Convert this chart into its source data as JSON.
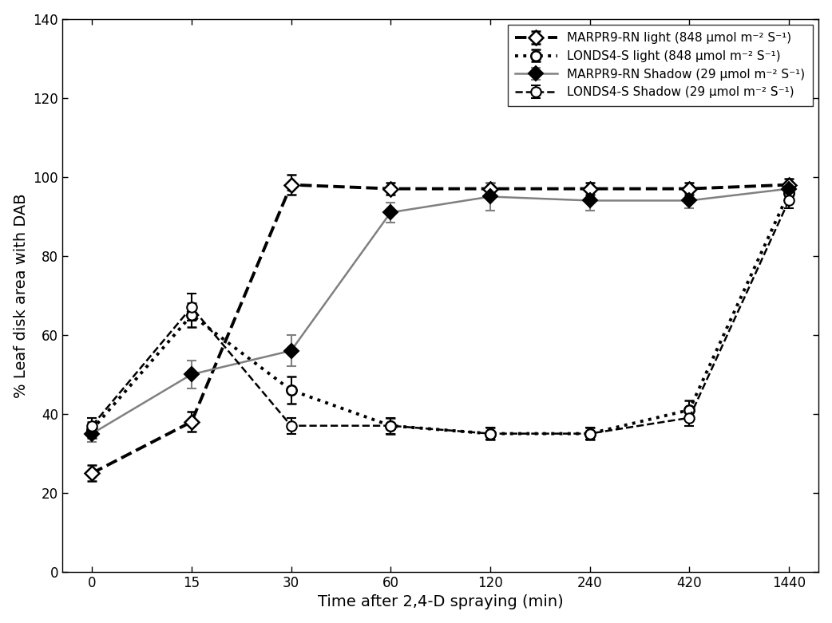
{
  "x_labels": [
    "0",
    "15",
    "30",
    "60",
    "120",
    "240",
    "420",
    "1440"
  ],
  "series": [
    {
      "label": "MARPR9-RN light (848 μmol m⁻² S⁻¹)",
      "y": [
        25,
        38,
        98,
        97,
        97,
        97,
        97,
        98
      ],
      "yerr": [
        2.0,
        2.5,
        2.5,
        1.5,
        1.5,
        1.5,
        1.5,
        1.5
      ],
      "color": "black",
      "linestyle": "--",
      "linewidth": 2.8,
      "marker": "D",
      "markersize": 9,
      "markerfacecolor": "white",
      "markeredgecolor": "black",
      "markeredgewidth": 1.8
    },
    {
      "label": "LONDS4-S light (848 μmol m⁻² S⁻¹)",
      "y": [
        36,
        65,
        46,
        37,
        35,
        35,
        41,
        96
      ],
      "yerr": [
        2.0,
        3.0,
        3.5,
        2.0,
        1.5,
        1.5,
        2.5,
        2.0
      ],
      "color": "black",
      "linestyle": ":",
      "linewidth": 2.8,
      "marker": "o",
      "markersize": 9,
      "markerfacecolor": "white",
      "markeredgecolor": "black",
      "markeredgewidth": 1.8
    },
    {
      "label": "MARPR9-RN Shadow (29 μmol m⁻² S⁻¹)",
      "y": [
        35,
        50,
        56,
        91,
        95,
        94,
        94,
        97
      ],
      "yerr": [
        2.0,
        3.5,
        4.0,
        2.5,
        3.5,
        2.5,
        2.0,
        1.5
      ],
      "color": "gray",
      "linestyle": "-",
      "linewidth": 1.8,
      "marker": "D",
      "markersize": 9,
      "markerfacecolor": "black",
      "markeredgecolor": "black",
      "markeredgewidth": 1.5
    },
    {
      "label": "LONDS4-S Shadow (29 μmol m⁻² S⁻¹)",
      "y": [
        37,
        67,
        37,
        37,
        35,
        35,
        39,
        94
      ],
      "yerr": [
        2.0,
        3.5,
        2.0,
        2.0,
        1.5,
        1.5,
        2.0,
        2.0
      ],
      "color": "black",
      "linestyle": "--",
      "linewidth": 1.8,
      "marker": "o",
      "markersize": 9,
      "markerfacecolor": "white",
      "markeredgecolor": "black",
      "markeredgewidth": 1.5
    }
  ],
  "xlabel": "Time after 2,4-D spraying (min)",
  "ylabel": "% Leaf disk area with DAB",
  "ylim": [
    0,
    140
  ],
  "yticks": [
    0,
    20,
    40,
    60,
    80,
    100,
    120,
    140
  ],
  "legend_loc": "upper right",
  "background_color": "white"
}
